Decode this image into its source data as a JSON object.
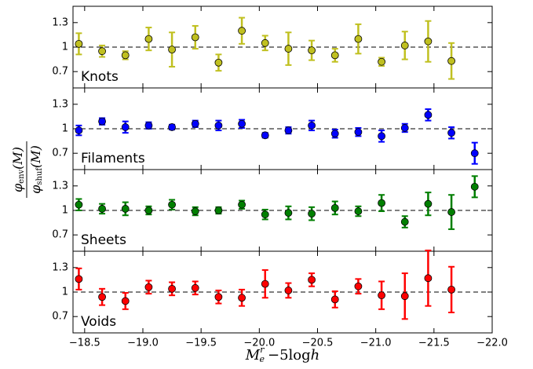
{
  "chart_data": [
    {
      "type": "errorbar",
      "label": "Knots",
      "color": "#c0c020",
      "ylabel": {
        "numerator": {
          "symbol": "φ",
          "sub": "env",
          "arg": "(M)"
        },
        "denominator": {
          "symbol": "φ",
          "sub": "shuf",
          "arg": "(M)"
        }
      },
      "x": [
        -18.45,
        -18.65,
        -18.85,
        -19.05,
        -19.25,
        -19.45,
        -19.65,
        -19.85,
        -20.05,
        -20.25,
        -20.45,
        -20.65,
        -20.85,
        -21.05,
        -21.25,
        -21.45,
        -21.65,
        -21.85
      ],
      "values": [
        1.04,
        0.95,
        0.9,
        1.1,
        0.97,
        1.12,
        0.81,
        1.2,
        1.05,
        0.98,
        0.96,
        0.9,
        1.1,
        0.82,
        1.02,
        1.07,
        0.83,
        null
      ],
      "errors": [
        0.13,
        0.07,
        0.05,
        0.14,
        0.21,
        0.14,
        0.1,
        0.16,
        0.09,
        0.2,
        0.12,
        0.08,
        0.18,
        0.05,
        0.17,
        0.25,
        0.22,
        null
      ],
      "ylim": [
        0.5,
        1.5
      ],
      "yticks": [
        0.7,
        1,
        1.3
      ],
      "hline": 1
    },
    {
      "type": "errorbar",
      "label": "Filaments",
      "color": "#0000ff",
      "x": [
        -18.45,
        -18.65,
        -18.85,
        -19.05,
        -19.25,
        -19.45,
        -19.65,
        -19.85,
        -20.05,
        -20.25,
        -20.45,
        -20.65,
        -20.85,
        -21.05,
        -21.25,
        -21.45,
        -21.65,
        -21.85
      ],
      "values": [
        0.98,
        1.09,
        1.02,
        1.04,
        1.02,
        1.06,
        1.04,
        1.06,
        0.92,
        0.98,
        1.04,
        0.94,
        0.96,
        0.91,
        1.01,
        1.17,
        0.95,
        0.7
      ],
      "errors": [
        0.06,
        0.04,
        0.07,
        0.04,
        0.03,
        0.04,
        0.06,
        0.05,
        0.03,
        0.04,
        0.06,
        0.05,
        0.05,
        0.07,
        0.05,
        0.07,
        0.07,
        0.13
      ],
      "ylim": [
        0.5,
        1.5
      ],
      "yticks": [
        0.7,
        1,
        1.3
      ],
      "hline": 1
    },
    {
      "type": "errorbar",
      "label": "Sheets",
      "color": "#007f00",
      "x": [
        -18.45,
        -18.65,
        -18.85,
        -19.05,
        -19.25,
        -19.45,
        -19.65,
        -19.85,
        -20.05,
        -20.25,
        -20.45,
        -20.65,
        -20.85,
        -21.05,
        -21.25,
        -21.45,
        -21.65,
        -21.85
      ],
      "values": [
        1.07,
        1.02,
        1.02,
        1.0,
        1.07,
        0.99,
        1.0,
        1.07,
        0.95,
        0.97,
        0.96,
        1.03,
        0.99,
        1.09,
        0.86,
        1.08,
        0.98,
        1.29
      ],
      "errors": [
        0.07,
        0.06,
        0.08,
        0.05,
        0.06,
        0.05,
        0.04,
        0.05,
        0.06,
        0.08,
        0.08,
        0.08,
        0.06,
        0.1,
        0.07,
        0.14,
        0.21,
        0.13
      ],
      "ylim": [
        0.5,
        1.5
      ],
      "yticks": [
        0.7,
        1,
        1.3
      ],
      "hline": 1
    },
    {
      "type": "errorbar",
      "label": "Voids",
      "color": "#ff0000",
      "x": [
        -18.45,
        -18.65,
        -18.85,
        -19.05,
        -19.25,
        -19.45,
        -19.65,
        -19.85,
        -20.05,
        -20.25,
        -20.45,
        -20.65,
        -20.85,
        -21.05,
        -21.25,
        -21.45,
        -21.65,
        -21.85
      ],
      "values": [
        1.16,
        0.94,
        0.89,
        1.06,
        1.04,
        1.05,
        0.94,
        0.93,
        1.1,
        1.02,
        1.15,
        0.91,
        1.07,
        0.96,
        0.95,
        1.17,
        1.03,
        null
      ],
      "errors": [
        0.13,
        0.1,
        0.1,
        0.08,
        0.08,
        0.08,
        0.08,
        0.1,
        0.17,
        0.09,
        0.08,
        0.1,
        0.09,
        0.17,
        0.28,
        0.34,
        0.28,
        null
      ],
      "ylim": [
        0.5,
        1.5
      ],
      "yticks": [
        0.7,
        1,
        1.3
      ],
      "hline": 1,
      "xlim": [
        -18.4,
        -22.0
      ],
      "xticks": [
        {
          "value": -18.5,
          "label": "−18.5"
        },
        {
          "value": -19.0,
          "label": "−19.0"
        },
        {
          "value": -19.5,
          "label": "−19.5"
        },
        {
          "value": -20.0,
          "label": "−20.0"
        },
        {
          "value": -20.5,
          "label": "−20.5"
        },
        {
          "value": -21.0,
          "label": "−21.0"
        },
        {
          "value": -21.5,
          "label": "−21.5"
        },
        {
          "value": -22.0,
          "label": "−22.0"
        }
      ],
      "xlabel": {
        "symbol": "M",
        "sub": "e",
        "sup": "r",
        "rest": "−5log",
        "h": "h"
      }
    }
  ]
}
